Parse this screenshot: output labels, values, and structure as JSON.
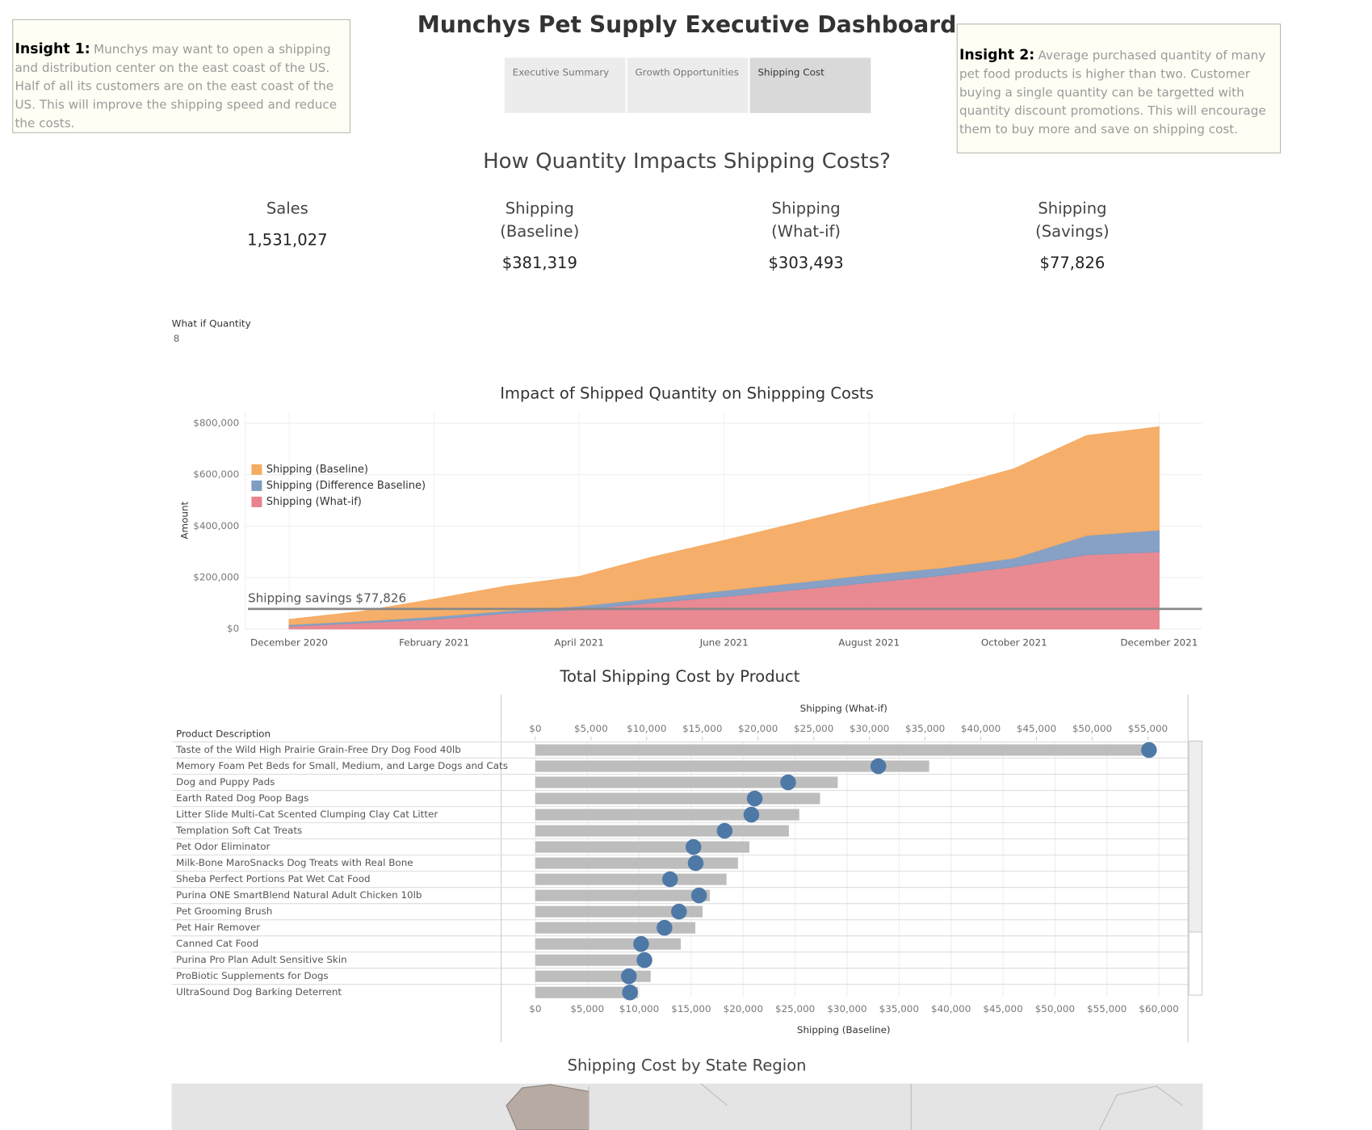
{
  "header": {
    "title": "Munchys Pet Supply Executive Dashboard"
  },
  "tabs": [
    "Executive Summary",
    "Growth Opportunities",
    "Shipping Cost"
  ],
  "insights": [
    {
      "label": "Insight 1:",
      "text": "Munchys may want to open a shipping and distribution center on the east coast of the US. Half of all its customers are on the east coast of the US. This will improve the shipping speed and reduce the costs."
    },
    {
      "label": "Insight 2:",
      "text": "Average purchased quantity of many pet food products is higher than two. Customer buying a single quantity can be targetted with quantity discount promotions. This will encourage them to buy more and save on shipping cost."
    }
  ],
  "section_title": "How Quantity Impacts Shipping Costs?",
  "kpis": [
    {
      "label": "Sales",
      "value": "1,531,027"
    },
    {
      "label": "Shipping (Baseline)",
      "value": "$381,319"
    },
    {
      "label": "Shipping (What-if)",
      "value": "$303,493"
    },
    {
      "label": "Shipping (Savings)",
      "value": "$77,826"
    }
  ],
  "parameter": {
    "label": "What if Quantity",
    "value": 8
  },
  "map_title": "Shipping Cost by State Region",
  "chart_data": [
    {
      "type": "area",
      "title": "Impact of Shipped Quantity on Shippping Costs",
      "y_label": "Amount",
      "categories": [
        "December 2020",
        null,
        "February 2021",
        null,
        "April 2021",
        null,
        "June 2021",
        null,
        "August 2021",
        null,
        "October 2021",
        null,
        "December 2021"
      ],
      "series": [
        {
          "name": "Shipping (Baseline)",
          "color": "#f5ab62",
          "values": [
            20000,
            37000,
            68000,
            96000,
            115000,
            160000,
            194000,
            232000,
            269000,
            307000,
            347000,
            388000,
            401000
          ]
        },
        {
          "name": "Shipping (Difference Baseline)",
          "color": "#7f9cc2",
          "values": [
            7000,
            7000,
            11000,
            10000,
            14000,
            17000,
            24000,
            27000,
            31000,
            30000,
            34000,
            75000,
            85000
          ]
        },
        {
          "name": "Shipping (What-if)",
          "color": "#e8838c",
          "values": [
            10000,
            24000,
            37000,
            61000,
            75000,
            102000,
            126000,
            153000,
            180000,
            208000,
            242000,
            289000,
            300000
          ]
        }
      ],
      "stacked": true,
      "reference_line": {
        "value": 77826,
        "label": "Shipping savings $77,826"
      },
      "ylim": [
        0,
        845000
      ],
      "yticks": [
        {
          "value": 0,
          "label": "$0"
        },
        {
          "value": 200000,
          "label": "$200,000"
        },
        {
          "value": 400000,
          "label": "$400,000"
        },
        {
          "value": 600000,
          "label": "$600,000"
        },
        {
          "value": 800000,
          "label": "$800,000"
        }
      ],
      "grid": true,
      "legend": "top-left"
    },
    {
      "type": "bar",
      "title": "Total Shipping Cost by Product",
      "row_header": "Product Description",
      "categories": [
        "Taste of the Wild High Prairie Grain-Free Dry Dog Food 40lb",
        "Memory Foam Pet Beds for Small, Medium, and Large Dogs and Cats",
        "Dog and Puppy Pads",
        "Earth Rated Dog Poop Bags",
        "Litter Slide Multi-Cat Scented Clumping Clay Cat Litter",
        "Templation Soft Cat Treats",
        "Pet Odor Eliminator",
        "Milk-Bone MaroSnacks Dog Treats with Real Bone",
        "Sheba Perfect Portions Pat Wet Cat Food",
        "Purina ONE SmartBlend Natural Adult Chicken 10lb",
        "Pet Grooming Brush",
        "Pet Hair Remover",
        "Canned Cat Food",
        "Purina Pro Plan Adult Sensitive Skin",
        "ProBiotic Supplements for Dogs",
        "UltraSound Dog Barking Deterrent"
      ],
      "series": [
        {
          "name": "Shipping (Baseline)",
          "color": "#bdbdbd",
          "mark": "bar",
          "axis": "x",
          "values": [
            58900,
            37900,
            29100,
            27400,
            25400,
            24400,
            20600,
            19500,
            18400,
            16800,
            16100,
            15400,
            14000,
            11100,
            11100,
            9900
          ]
        },
        {
          "name": "Shipping (What-if)",
          "color": "#4e79a7",
          "mark": "circle",
          "axis": "x2",
          "values": [
            55100,
            30800,
            22700,
            19700,
            19400,
            17000,
            14200,
            14400,
            12100,
            14700,
            12900,
            11600,
            9500,
            9800,
            8400,
            8500
          ]
        }
      ],
      "xlim": [
        0,
        62800
      ],
      "xticks": [
        {
          "value": 0,
          "label": "$0"
        },
        {
          "value": 5000,
          "label": "$5,000"
        },
        {
          "value": 10000,
          "label": "$10,000"
        },
        {
          "value": 15000,
          "label": "$15,000"
        },
        {
          "value": 20000,
          "label": "$20,000"
        },
        {
          "value": 25000,
          "label": "$25,000"
        },
        {
          "value": 30000,
          "label": "$30,000"
        },
        {
          "value": 35000,
          "label": "$35,000"
        },
        {
          "value": 40000,
          "label": "$40,000"
        },
        {
          "value": 45000,
          "label": "$45,000"
        },
        {
          "value": 50000,
          "label": "$50,000"
        },
        {
          "value": 55000,
          "label": "$55,000"
        },
        {
          "value": 60000,
          "label": "$60,000"
        }
      ],
      "x2lim": [
        0,
        58600
      ],
      "x2ticks": [
        {
          "value": 0,
          "label": "$0"
        },
        {
          "value": 5000,
          "label": "$5,000"
        },
        {
          "value": 10000,
          "label": "$10,000"
        },
        {
          "value": 15000,
          "label": "$15,000"
        },
        {
          "value": 20000,
          "label": "$20,000"
        },
        {
          "value": 25000,
          "label": "$25,000"
        },
        {
          "value": 30000,
          "label": "$30,000"
        },
        {
          "value": 35000,
          "label": "$35,000"
        },
        {
          "value": 40000,
          "label": "$40,000"
        },
        {
          "value": 45000,
          "label": "$45,000"
        },
        {
          "value": 50000,
          "label": "$50,000"
        },
        {
          "value": 55000,
          "label": "$55,000"
        }
      ],
      "grid": true
    }
  ]
}
